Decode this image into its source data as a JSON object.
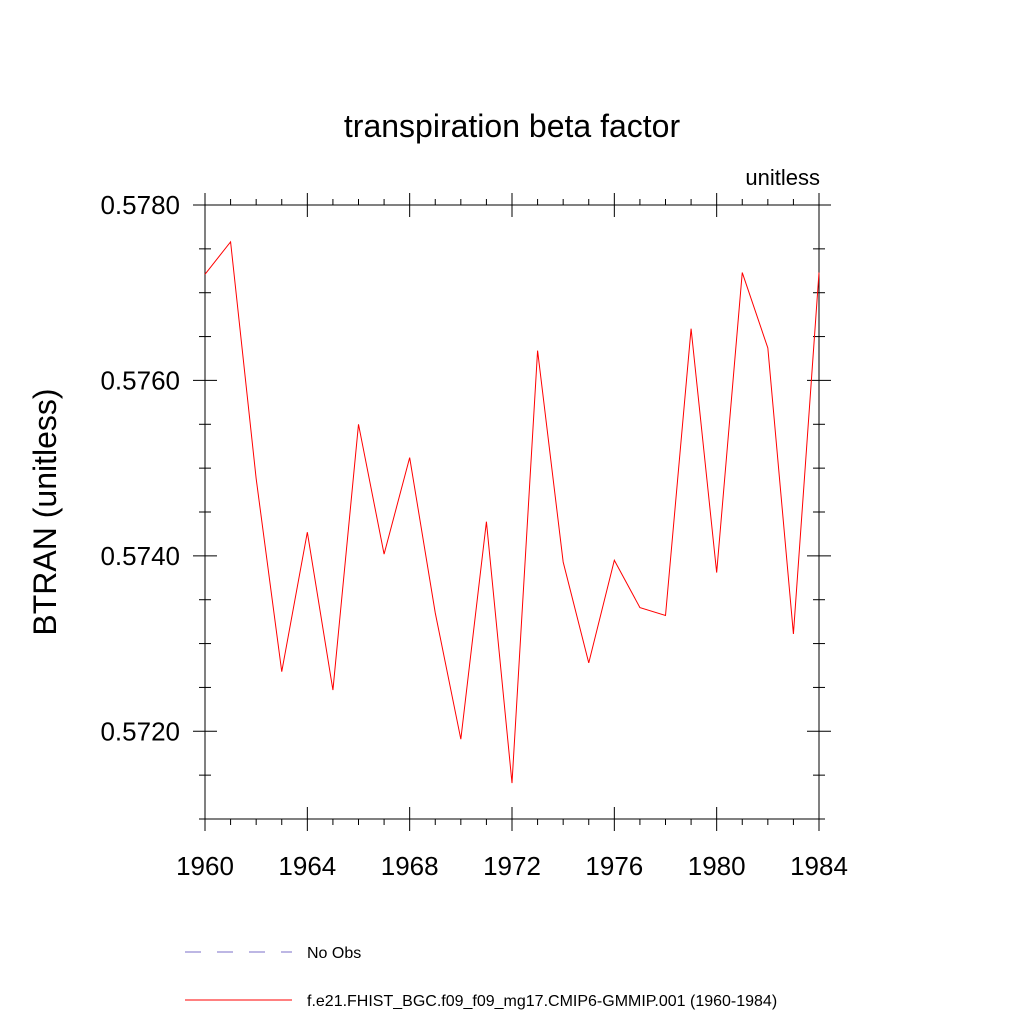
{
  "chart_data": {
    "type": "line",
    "title": "transpiration beta factor",
    "units_label": "unitless",
    "ylabel": "BTRAN  (unitless)",
    "xlabel": "",
    "xlim": [
      1960,
      1984
    ],
    "ylim": [
      0.571,
      0.578
    ],
    "x_ticks": [
      1960,
      1964,
      1968,
      1972,
      1976,
      1980,
      1984
    ],
    "y_ticks": [
      0.572,
      0.574,
      0.576,
      0.578
    ],
    "x_tick_labels": [
      "1960",
      "1964",
      "1968",
      "1972",
      "1976",
      "1980",
      "1984"
    ],
    "y_tick_labels": [
      "0.5720",
      "0.5740",
      "0.5760",
      "0.5780"
    ],
    "grid": false,
    "legend_position": "bottom",
    "series": [
      {
        "name": "f.e21.FHIST_BGC.f09_f09_mg17.CMIP6-GMMIP.001 (1960-1984)",
        "color": "#ff0000",
        "style": "solid",
        "x": [
          1960,
          1961,
          1962,
          1963,
          1964,
          1965,
          1966,
          1967,
          1968,
          1969,
          1970,
          1971,
          1972,
          1973,
          1974,
          1975,
          1976,
          1977,
          1978,
          1979,
          1980,
          1981,
          1982,
          1983,
          1984
        ],
        "y": [
          0.57721,
          0.57758,
          0.57488,
          0.57268,
          0.57427,
          0.57247,
          0.5755,
          0.57402,
          0.57512,
          0.57335,
          0.57191,
          0.57439,
          0.57141,
          0.57634,
          0.57393,
          0.57278,
          0.57395,
          0.57341,
          0.57332,
          0.57659,
          0.57381,
          0.57723,
          0.57637,
          0.57311,
          0.57723
        ]
      }
    ],
    "legend": [
      {
        "label": "No Obs",
        "color": "#7b6fc9",
        "style": "dashed"
      },
      {
        "label": "f.e21.FHIST_BGC.f09_f09_mg17.CMIP6-GMMIP.001 (1960-1984)",
        "color": "#ff0000",
        "style": "solid"
      }
    ]
  }
}
